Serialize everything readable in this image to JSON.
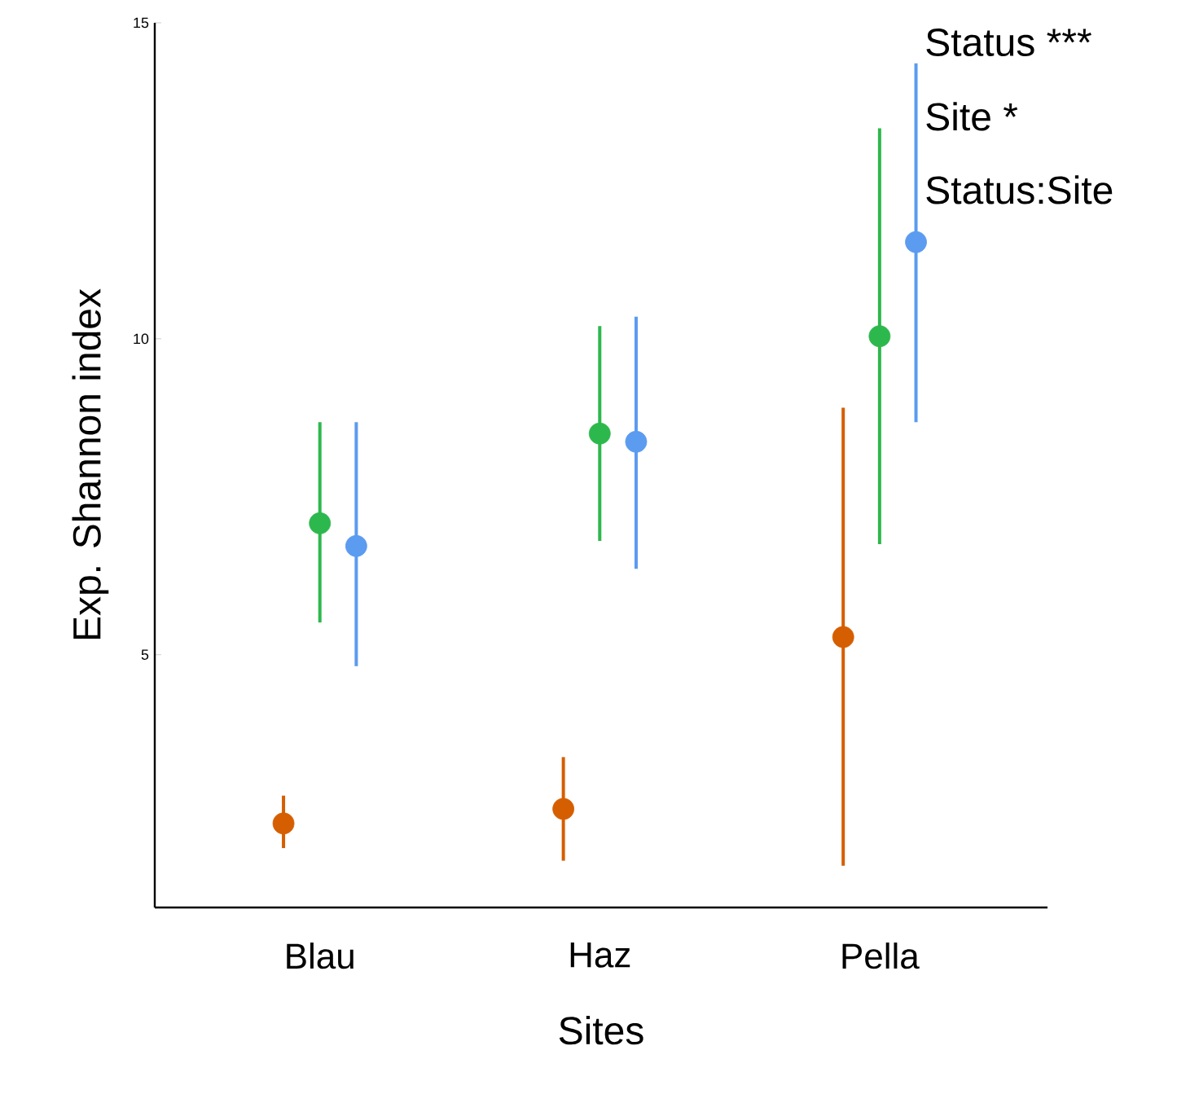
{
  "chart_data": {
    "type": "scatter",
    "xlabel": "Sites",
    "ylabel": "Exp. Shannon index",
    "categories": [
      "Blau",
      "Haz",
      "Pella"
    ],
    "ylim": [
      1,
      15
    ],
    "yticks": [
      5,
      10,
      15
    ],
    "marker": "circle",
    "series": [
      {
        "color": "#d55e00",
        "values": [
          2.33,
          2.56,
          5.28
        ],
        "errors": [
          [
            1.94,
            2.77
          ],
          [
            1.74,
            3.38
          ],
          [
            1.66,
            8.91
          ]
        ]
      },
      {
        "color": "#2db84d",
        "values": [
          7.08,
          8.5,
          10.04
        ],
        "errors": [
          [
            5.51,
            8.68
          ],
          [
            6.8,
            10.2
          ],
          [
            6.75,
            13.33
          ]
        ]
      },
      {
        "color": "#5b9bf0",
        "values": [
          6.72,
          8.37,
          11.53
        ],
        "errors": [
          [
            4.82,
            8.68
          ],
          [
            6.36,
            10.35
          ],
          [
            8.68,
            14.36
          ]
        ]
      }
    ],
    "annotations": [
      "Status ***",
      "Site *",
      "Status:Site"
    ]
  }
}
